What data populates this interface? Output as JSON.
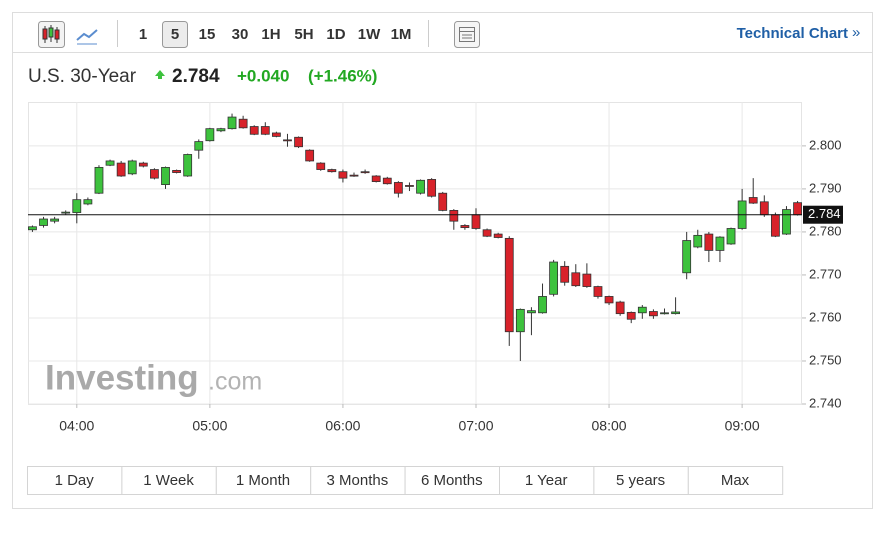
{
  "toolbar": {
    "intervals": [
      "1",
      "5",
      "15",
      "30",
      "1H",
      "5H",
      "1D",
      "1W",
      "1M"
    ],
    "link": "Technical Chart",
    "link_arrow": "»"
  },
  "header": {
    "name": "U.S. 30-Year",
    "last": "2.784",
    "change": "+0.040",
    "change_pct": "(+1.46%)"
  },
  "watermark": {
    "brand": "Investing",
    "suffix": ".com"
  },
  "ranges": [
    "1 Day",
    "1 Week",
    "1 Month",
    "3 Months",
    "6 Months",
    "1 Year",
    "5 years",
    "Max"
  ],
  "chart_data": {
    "type": "candlestick",
    "x": [
      "03:40",
      "03:45",
      "03:50",
      "03:55",
      "04:00",
      "04:05",
      "04:10",
      "04:15",
      "04:20",
      "04:25",
      "04:30",
      "04:35",
      "04:40",
      "04:45",
      "04:50",
      "04:55",
      "05:00",
      "05:05",
      "05:10",
      "05:15",
      "05:20",
      "05:25",
      "05:30",
      "05:35",
      "05:40",
      "05:45",
      "05:50",
      "05:55",
      "06:00",
      "06:05",
      "06:10",
      "06:15",
      "06:20",
      "06:25",
      "06:30",
      "06:35",
      "06:40",
      "06:45",
      "06:50",
      "06:55",
      "07:00",
      "07:05",
      "07:10",
      "07:15",
      "07:20",
      "07:25",
      "07:30",
      "07:35",
      "07:40",
      "07:45",
      "07:50",
      "07:55",
      "08:00",
      "08:05",
      "08:10",
      "08:15",
      "08:20",
      "08:25",
      "08:30",
      "08:35",
      "08:40",
      "08:45",
      "08:50",
      "08:55",
      "09:00",
      "09:05",
      "09:10",
      "09:15",
      "09:20",
      "09:25"
    ],
    "open": [
      2.7805,
      2.7815,
      2.7825,
      2.7845,
      2.7845,
      2.7865,
      2.789,
      2.7955,
      2.796,
      2.7935,
      2.796,
      2.7945,
      2.791,
      2.7943,
      2.793,
      2.799,
      2.8012,
      2.8035,
      2.804,
      2.8062,
      2.8045,
      2.8045,
      2.803,
      2.8014,
      2.802,
      2.799,
      2.796,
      2.7945,
      2.794,
      2.7932,
      2.794,
      2.793,
      2.7925,
      2.7915,
      2.7908,
      2.789,
      2.7922,
      2.789,
      2.785,
      2.7815,
      2.784,
      2.7805,
      2.7795,
      2.7785,
      2.7568,
      2.7612,
      2.7612,
      2.7655,
      2.772,
      2.7705,
      2.7702,
      2.7673,
      2.765,
      2.7637,
      2.7613,
      2.7612,
      2.7615,
      2.7612,
      2.761,
      2.7705,
      2.7765,
      2.7795,
      2.7757,
      2.7772,
      2.7808,
      2.788,
      2.787,
      2.784,
      2.7795,
      2.7868
    ],
    "high": [
      2.7815,
      2.7835,
      2.7835,
      2.785,
      2.789,
      2.788,
      2.7955,
      2.7968,
      2.7965,
      2.7968,
      2.7963,
      2.7948,
      2.7952,
      2.7945,
      2.7982,
      2.8015,
      2.8042,
      2.8042,
      2.8075,
      2.807,
      2.8048,
      2.8055,
      2.8033,
      2.8028,
      2.8022,
      2.7992,
      2.7962,
      2.7947,
      2.7945,
      2.7938,
      2.7945,
      2.7932,
      2.7928,
      2.7918,
      2.7915,
      2.7922,
      2.7925,
      2.7893,
      2.7853,
      2.7818,
      2.7855,
      2.7808,
      2.7798,
      2.779,
      2.7622,
      2.7625,
      2.768,
      2.7735,
      2.7732,
      2.7725,
      2.7727,
      2.7675,
      2.7652,
      2.764,
      2.7615,
      2.763,
      2.762,
      2.7622,
      2.7648,
      2.78,
      2.7805,
      2.78,
      2.779,
      2.781,
      2.79,
      2.7925,
      2.7885,
      2.7845,
      2.786,
      2.7872
    ],
    "low": [
      2.78,
      2.781,
      2.782,
      2.784,
      2.782,
      2.7862,
      2.7888,
      2.7953,
      2.7928,
      2.7932,
      2.795,
      2.7922,
      2.79,
      2.7936,
      2.7928,
      2.797,
      2.801,
      2.8032,
      2.8038,
      2.804,
      2.8025,
      2.8025,
      2.802,
      2.7998,
      2.7995,
      2.7963,
      2.7942,
      2.7938,
      2.7915,
      2.7928,
      2.7935,
      2.7915,
      2.791,
      2.788,
      2.7895,
      2.7887,
      2.788,
      2.7848,
      2.7805,
      2.7805,
      2.7805,
      2.7788,
      2.7785,
      2.7535,
      2.75,
      2.756,
      2.761,
      2.765,
      2.7675,
      2.7672,
      2.767,
      2.7645,
      2.763,
      2.7605,
      2.7588,
      2.7598,
      2.7598,
      2.7608,
      2.7608,
      2.769,
      2.7762,
      2.773,
      2.773,
      2.777,
      2.7805,
      2.7865,
      2.7835,
      2.7788,
      2.7793,
      2.7838
    ],
    "close": [
      2.7812,
      2.783,
      2.783,
      2.7846,
      2.7875,
      2.7875,
      2.795,
      2.7965,
      2.793,
      2.7965,
      2.7953,
      2.7925,
      2.795,
      2.7938,
      2.798,
      2.801,
      2.804,
      2.804,
      2.8067,
      2.8042,
      2.8027,
      2.8027,
      2.8022,
      2.8012,
      2.7998,
      2.7965,
      2.7945,
      2.794,
      2.7925,
      2.7931,
      2.7939,
      2.7917,
      2.7912,
      2.789,
      2.7907,
      2.792,
      2.7883,
      2.785,
      2.7825,
      2.781,
      2.7808,
      2.779,
      2.7787,
      2.7568,
      2.762,
      2.7617,
      2.765,
      2.773,
      2.7683,
      2.7675,
      2.7673,
      2.765,
      2.7635,
      2.761,
      2.7597,
      2.7625,
      2.7605,
      2.7612,
      2.7614,
      2.778,
      2.7792,
      2.7757,
      2.7788,
      2.7808,
      2.7872,
      2.7867,
      2.784,
      2.779,
      2.7852,
      2.784
    ],
    "up_color": "#3dc23d",
    "down_color": "#d8222a",
    "last_price": 2.784,
    "xlim": [
      "03:38",
      "09:27"
    ],
    "xticks": [
      "04:00",
      "05:00",
      "06:00",
      "07:00",
      "08:00",
      "09:00"
    ],
    "ylim": [
      2.74,
      2.8102
    ],
    "yticks": [
      {
        "value": 2.74,
        "label": "2.740"
      },
      {
        "value": 2.75,
        "label": "2.750"
      },
      {
        "value": 2.76,
        "label": "2.760"
      },
      {
        "value": 2.77,
        "label": "2.770"
      },
      {
        "value": 2.78,
        "label": "2.780"
      },
      {
        "value": 2.79,
        "label": "2.790"
      },
      {
        "value": 2.8,
        "label": "2.800"
      }
    ],
    "grid": true
  }
}
